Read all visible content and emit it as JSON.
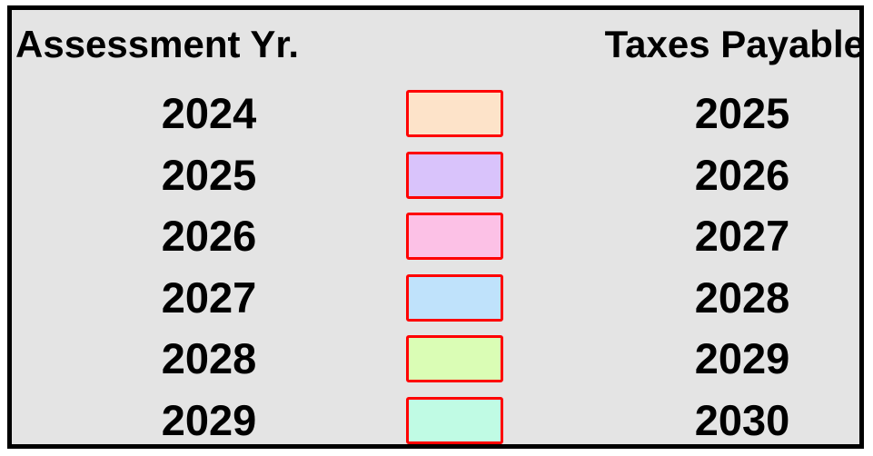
{
  "header": {
    "left": "Assessment Yr.",
    "right": "Taxes Payable"
  },
  "rows": [
    {
      "assessment": 2024,
      "payable": 2025,
      "color": "#fde3c9"
    },
    {
      "assessment": 2025,
      "payable": 2026,
      "color": "#d9c3fb"
    },
    {
      "assessment": 2026,
      "payable": 2027,
      "color": "#fcc1e6"
    },
    {
      "assessment": 2027,
      "payable": 2028,
      "color": "#bfe2fb"
    },
    {
      "assessment": 2028,
      "payable": 2029,
      "color": "#dafdb5"
    },
    {
      "assessment": 2029,
      "payable": 2030,
      "color": "#c0fbe4"
    }
  ]
}
